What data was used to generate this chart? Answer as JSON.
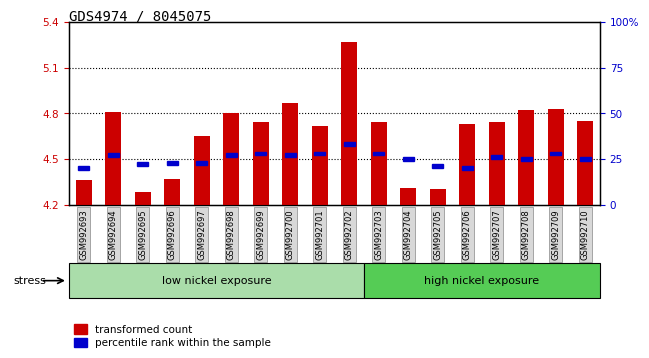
{
  "title": "GDS4974 / 8045075",
  "samples": [
    "GSM992693",
    "GSM992694",
    "GSM992695",
    "GSM992696",
    "GSM992697",
    "GSM992698",
    "GSM992699",
    "GSM992700",
    "GSM992701",
    "GSM992702",
    "GSM992703",
    "GSM992704",
    "GSM992705",
    "GSM992706",
    "GSM992707",
    "GSM992708",
    "GSM992709",
    "GSM992710"
  ],
  "transformed_count": [
    4.36,
    4.81,
    4.28,
    4.37,
    4.65,
    4.8,
    4.74,
    4.87,
    4.72,
    5.27,
    4.74,
    4.31,
    4.3,
    4.73,
    4.74,
    4.82,
    4.83,
    4.75
  ],
  "percentile_rank": [
    20,
    27,
    22,
    23,
    23,
    27,
    28,
    27,
    28,
    33,
    28,
    25,
    21,
    20,
    26,
    25,
    28,
    25
  ],
  "ylim_left": [
    4.2,
    5.4
  ],
  "ylim_right": [
    0,
    100
  ],
  "yticks_left": [
    4.2,
    4.5,
    4.8,
    5.1,
    5.4
  ],
  "yticks_right": [
    0,
    25,
    50,
    75,
    100
  ],
  "ytick_labels_right": [
    "0",
    "25",
    "50",
    "75",
    "100%"
  ],
  "hlines": [
    4.5,
    4.8,
    5.1
  ],
  "bar_color": "#cc0000",
  "blue_color": "#0000cc",
  "bar_bottom": 4.2,
  "bar_width": 0.55,
  "low_nickel_count": 10,
  "high_nickel_count": 8,
  "group_labels": [
    "low nickel exposure",
    "high nickel exposure"
  ],
  "low_color": "#aaddaa",
  "high_color": "#55cc55",
  "stress_label": "stress",
  "legend_red": "transformed count",
  "legend_blue": "percentile rank within the sample",
  "red_axis_color": "#cc0000",
  "blue_axis_color": "#0000cc",
  "title_fontsize": 10,
  "tick_fontsize": 7.5
}
